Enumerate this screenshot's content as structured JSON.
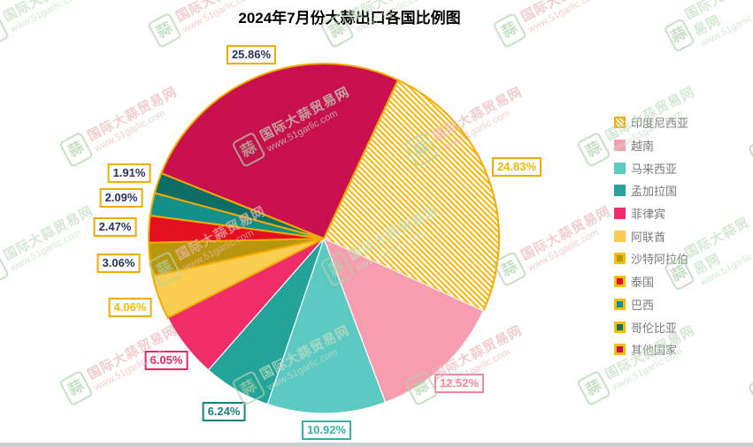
{
  "chart_data": {
    "type": "pie",
    "title": "2024年7月份大蒜出口各国比例图",
    "legend_position": "right",
    "hatch_color": "#F7B500",
    "series": [
      {
        "name": "印度尼西亚",
        "value": 24.83,
        "color": "hatch",
        "label_color": "#F7B500",
        "label_border": "#F2AB00",
        "slice_border": "#F2AB00",
        "legend_border": true
      },
      {
        "name": "越南",
        "value": 12.52,
        "color": "#F89DAF",
        "label_color": "#F4849E",
        "label_border": "#F4849E",
        "slice_border": "#FFFFFF",
        "legend_border": false
      },
      {
        "name": "马来西亚",
        "value": 10.92,
        "color": "#5CC9C3",
        "label_color": "#2FB5AE",
        "label_border": "#2FB5AE",
        "slice_border": "#FFFFFF",
        "legend_border": false
      },
      {
        "name": "孟加拉国",
        "value": 6.24,
        "color": "#23A399",
        "label_color": "#17827B",
        "label_border": "#17827B",
        "slice_border": "#FFFFFF",
        "legend_border": false
      },
      {
        "name": "菲律宾",
        "value": 6.05,
        "color": "#EE2D69",
        "label_color": "#E9256A",
        "label_border": "#E9256A",
        "slice_border": "#FFFFFF",
        "legend_border": false
      },
      {
        "name": "阿联酋",
        "value": 4.06,
        "color": "#F9CE50",
        "label_color": "#F5B800",
        "label_border": "#F2AB00",
        "slice_border": "#F2AB00",
        "legend_border": false
      },
      {
        "name": "沙特阿拉伯",
        "value": 3.06,
        "color": "#B8970F",
        "label_color": "#28355C",
        "label_border": "#F2AB00",
        "slice_border": "#F2AB00",
        "legend_border": true
      },
      {
        "name": "泰国",
        "value": 2.47,
        "color": "#E31020",
        "label_color": "#28355C",
        "label_border": "#F2AB00",
        "slice_border": "#F2AB00",
        "legend_border": true
      },
      {
        "name": "巴西",
        "value": 2.09,
        "color": "#14908A",
        "label_color": "#28355C",
        "label_border": "#F2AB00",
        "slice_border": "#F2AB00",
        "legend_border": true
      },
      {
        "name": "哥伦比亚",
        "value": 1.91,
        "color": "#0E6D64",
        "label_color": "#28355C",
        "label_border": "#F2AB00",
        "slice_border": "#F2AB00",
        "legend_border": true
      },
      {
        "name": "其他国家",
        "value": 25.86,
        "color": "#C8104E",
        "label_color": "#28355C",
        "label_border": "#F2AB00",
        "slice_border": "#F2AB00",
        "legend_border": true
      }
    ],
    "layout": {
      "center": [
        366,
        270
      ],
      "radius": 198,
      "start_angle": 25,
      "label_distances": [
        232,
        224,
        217,
        226,
        225,
        233,
        234,
        236,
        234,
        232,
        224
      ],
      "legend_swatch_border_color": "#F5BE00"
    }
  },
  "watermark": {
    "brand": "国际大蒜贸易网",
    "url": "www.51garlic.com",
    "stamp_char": "蒜",
    "colors": {
      "pink": "#ECB8B8",
      "green": "#C3DFC1",
      "stamp": "#AED3AB"
    }
  },
  "colors": {
    "accent_yellow": "#F2AB00",
    "background": "#FFFFFF",
    "bottom_bar": "#CBD0D3"
  }
}
